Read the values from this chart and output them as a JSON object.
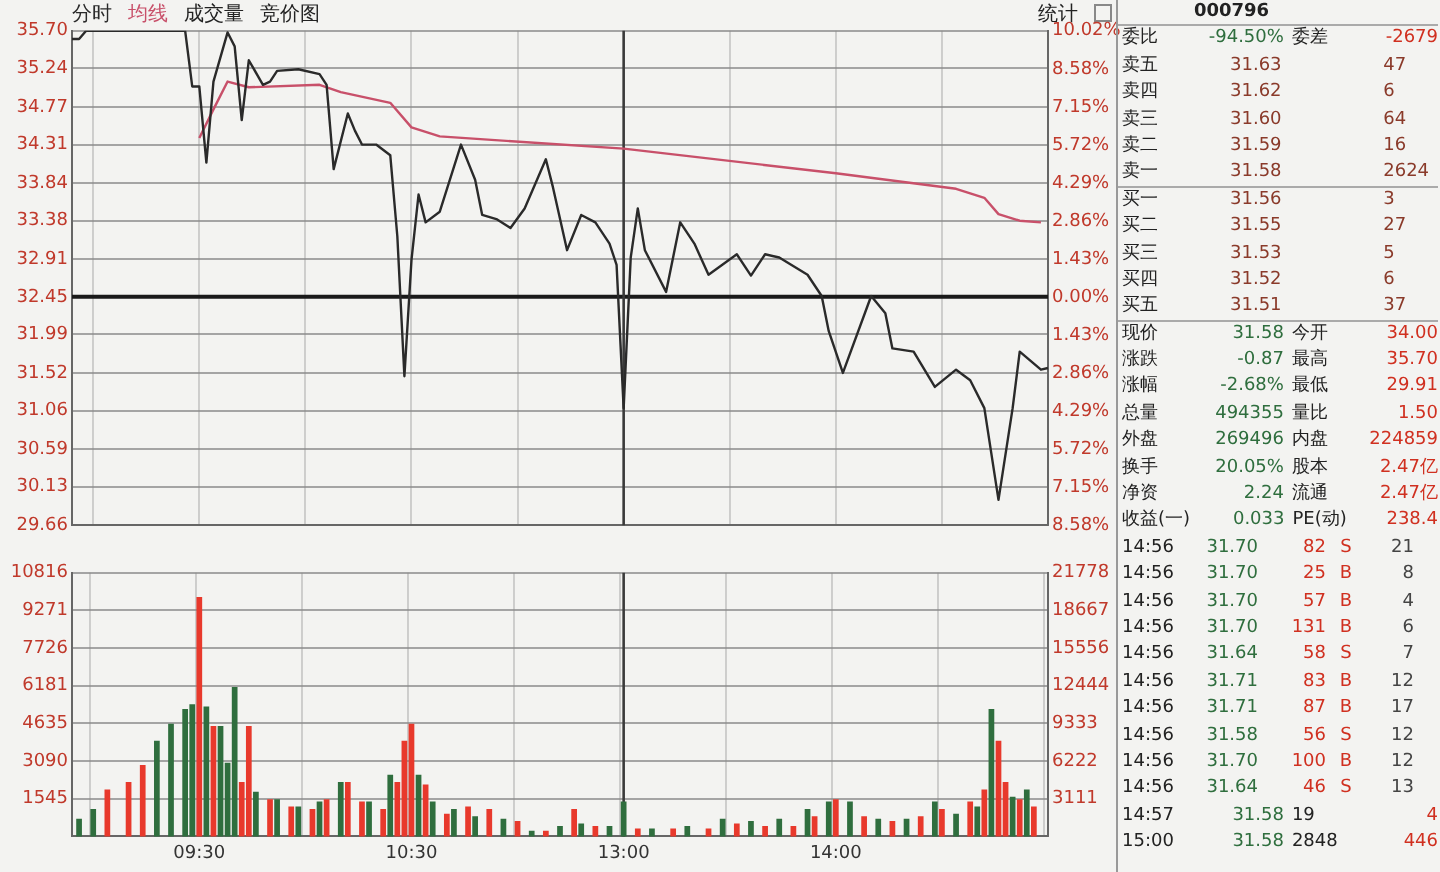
{
  "chart_data": [
    {
      "type": "line",
      "annotations": [
        "成交量",
        "竞价图",
        "统计"
      ],
      "categories": [
        null,
        null,
        null,
        null,
        null,
        null,
        null,
        null,
        null,
        null,
        null,
        null,
        null,
        null,
        null,
        null,
        null,
        null,
        "09:30",
        null,
        null,
        null,
        null,
        null,
        null,
        null,
        null,
        null,
        null,
        null,
        null,
        null,
        null,
        null,
        null,
        null,
        null,
        null,
        null,
        null,
        null,
        null,
        null,
        null,
        null,
        null,
        null,
        null,
        "10:30",
        null,
        null,
        null,
        null,
        null,
        null,
        null,
        null,
        null,
        null,
        null,
        null,
        null,
        null,
        null,
        null,
        null,
        null,
        null,
        null,
        null,
        null,
        null,
        null,
        null,
        null,
        null,
        null,
        null,
        "13:00",
        null,
        null,
        null,
        null,
        null,
        null,
        null,
        null,
        null,
        null,
        null,
        null,
        null,
        null,
        null,
        null,
        null,
        null,
        null,
        null,
        null,
        null,
        null,
        null,
        null,
        null,
        null,
        null,
        null,
        "14:00",
        null,
        null,
        null,
        null,
        null,
        null,
        null,
        null,
        null,
        null,
        null,
        null,
        null,
        null,
        null,
        null,
        null,
        null,
        null,
        null,
        null,
        null,
        null,
        null,
        null,
        null,
        null,
        null,
        null,
        null
      ],
      "series": [
        {
          "name": "分时",
          "color": "#2a2a2a",
          "values": [
            35.6,
            35.6,
            35.7,
            null,
            null,
            null,
            null,
            null,
            null,
            null,
            null,
            null,
            null,
            null,
            null,
            null,
            35.7,
            35.02,
            35.02,
            34.09,
            35.08,
            null,
            35.68,
            35.51,
            34.61,
            35.34,
            null,
            35.04,
            35.08,
            35.21,
            null,
            null,
            35.23,
            null,
            null,
            35.17,
            35.04,
            34.01,
            null,
            34.69,
            34.48,
            34.31,
            null,
            34.31,
            null,
            34.18,
            33.19,
            31.48,
            32.9,
            33.7,
            33.36,
            null,
            33.49,
            null,
            null,
            34.31,
            null,
            33.88,
            33.45,
            null,
            33.4,
            null,
            33.29,
            null,
            33.53,
            null,
            null,
            34.13,
            33.79,
            null,
            33.02,
            null,
            33.45,
            null,
            33.36,
            null,
            33.1,
            32.84,
            31.09,
            32.93,
            33.53,
            33.02,
            null,
            null,
            32.51,
            null,
            33.36,
            null,
            33.1,
            null,
            32.72,
            null,
            null,
            null,
            32.97,
            null,
            32.71,
            null,
            32.97,
            null,
            32.93,
            null,
            null,
            null,
            32.72,
            null,
            32.46,
            32.03,
            null,
            31.52,
            null,
            null,
            null,
            32.46,
            null,
            32.25,
            31.82,
            null,
            null,
            31.78,
            null,
            null,
            31.35,
            null,
            null,
            31.56,
            null,
            31.43,
            null,
            31.09,
            null,
            29.97,
            null,
            31.09,
            31.78,
            null,
            null,
            31.56,
            31.58
          ]
        },
        {
          "name": "均线",
          "color": "#c8506a",
          "values": [
            null,
            null,
            null,
            null,
            null,
            null,
            null,
            null,
            null,
            null,
            null,
            null,
            null,
            null,
            null,
            null,
            null,
            null,
            34.39,
            null,
            34.74,
            null,
            35.08,
            null,
            null,
            35.01,
            null,
            null,
            null,
            null,
            null,
            null,
            null,
            null,
            null,
            35.04,
            null,
            null,
            34.95,
            null,
            null,
            null,
            null,
            null,
            null,
            34.82,
            null,
            null,
            34.52,
            null,
            null,
            null,
            34.41,
            null,
            null,
            null,
            null,
            null,
            null,
            null,
            null,
            null,
            null,
            null,
            null,
            null,
            null,
            null,
            null,
            null,
            null,
            null,
            null,
            null,
            null,
            null,
            null,
            null,
            34.26,
            null,
            null,
            null,
            null,
            null,
            null,
            null,
            null,
            null,
            null,
            null,
            null,
            null,
            null,
            null,
            null,
            null,
            null,
            null,
            null,
            null,
            null,
            null,
            null,
            null,
            null,
            null,
            null,
            null,
            33.96,
            null,
            null,
            null,
            null,
            null,
            null,
            null,
            null,
            null,
            null,
            null,
            null,
            null,
            null,
            null,
            null,
            33.77,
            null,
            null,
            null,
            33.66,
            null,
            33.46,
            null,
            null,
            33.38,
            null,
            null,
            33.36,
            null
          ]
        }
      ],
      "ylim": [
        29.66,
        35.7
      ],
      "yticks": [
        {
          "value": 35.7,
          "label": "35.70"
        },
        35.24,
        34.77,
        34.31,
        33.84,
        33.38,
        32.91,
        32.45,
        31.99,
        31.52,
        31.06,
        30.59,
        30.13,
        29.66
      ],
      "y2lim": [
        -8.58,
        10.02
      ],
      "y2ticks": [
        {
          "value": 10.02,
          "label": "10.02%"
        },
        {
          "value": 8.58,
          "label": "8.58%"
        },
        {
          "value": 7.15,
          "label": "7.15%"
        },
        {
          "value": 5.72,
          "label": "5.72%"
        },
        {
          "value": 4.29,
          "label": "4.29%"
        },
        {
          "value": 2.86,
          "label": "2.86%"
        },
        {
          "value": 1.43,
          "label": "1.43%"
        },
        {
          "value": 0,
          "label": "0.00%"
        },
        {
          "value": -1.43,
          "label": "1.43%"
        },
        {
          "value": -2.86,
          "label": "2.86%"
        },
        {
          "value": -4.29,
          "label": "4.29%"
        },
        {
          "value": -5.72,
          "label": "5.72%"
        },
        {
          "value": -7.15,
          "label": "7.15%"
        },
        {
          "value": -8.58,
          "label": "8.58%"
        }
      ],
      "tick_labels": "y",
      "grid": true,
      "legend": false,
      "ref_lines": [
        {
          "axis": "y",
          "value": 32.45,
          "color": "#1a1a1a"
        },
        {
          "axis": "x",
          "value": "13:00",
          "color": "#3a3a3a"
        }
      ]
    },
    {
      "type": "bar",
      "categories": [
        null,
        null,
        null,
        null,
        null,
        null,
        null,
        null,
        null,
        null,
        null,
        null,
        null,
        null,
        null,
        null,
        null,
        null,
        "09:30",
        null,
        null,
        null,
        null,
        null,
        null,
        null,
        null,
        null,
        null,
        null,
        null,
        null,
        null,
        null,
        null,
        null,
        null,
        null,
        null,
        null,
        null,
        null,
        null,
        null,
        null,
        null,
        null,
        null,
        "10:30",
        null,
        null,
        null,
        null,
        null,
        null,
        null,
        null,
        null,
        null,
        null,
        null,
        null,
        null,
        null,
        null,
        null,
        null,
        null,
        null,
        null,
        null,
        null,
        null,
        null,
        null,
        null,
        null,
        null,
        "13:00",
        null,
        null,
        null,
        null,
        null,
        null,
        null,
        null,
        null,
        null,
        null,
        null,
        null,
        null,
        null,
        null,
        null,
        null,
        null,
        null,
        null,
        null,
        null,
        null,
        null,
        null,
        null,
        null,
        null,
        "14:00",
        null,
        null,
        null,
        null,
        null,
        null,
        null,
        null,
        null,
        null,
        null,
        null,
        null,
        null,
        null,
        null,
        null,
        null,
        null,
        null,
        null,
        null,
        null,
        null,
        null,
        null,
        null,
        null,
        null,
        null
      ],
      "series": [
        {
          "values": [
            null,
            700,
            null,
            1100,
            null,
            1900,
            null,
            null,
            2200,
            null,
            2900,
            null,
            3900,
            null,
            4600,
            null,
            5200,
            5400,
            9800,
            5300,
            4500,
            4500,
            3000,
            6100,
            2200,
            4500,
            1800,
            null,
            1500,
            1500,
            null,
            1200,
            1200,
            null,
            1100,
            1400,
            1500,
            null,
            2200,
            2200,
            null,
            1400,
            1400,
            null,
            1100,
            2500,
            2200,
            3900,
            4600,
            2500,
            2100,
            1400,
            null,
            900,
            1100,
            null,
            1200,
            800,
            null,
            1100,
            null,
            700,
            null,
            600,
            null,
            200,
            null,
            200,
            null,
            400,
            null,
            1100,
            500,
            null,
            400,
            null,
            400,
            null,
            1400,
            null,
            300,
            null,
            300,
            null,
            null,
            300,
            null,
            400,
            null,
            null,
            300,
            null,
            700,
            null,
            500,
            null,
            600,
            null,
            400,
            null,
            700,
            null,
            400,
            null,
            1100,
            800,
            null,
            1400,
            1500,
            null,
            1400,
            null,
            800,
            null,
            700,
            null,
            600,
            null,
            700,
            null,
            800,
            null,
            1400,
            1100,
            null,
            900,
            null,
            1400,
            1200,
            1900,
            5200,
            3900,
            2200,
            1600,
            1500,
            1900,
            1200,
            null,
            null
          ],
          "colors": [
            null,
            "#2f6e3e",
            null,
            "#2f6e3e",
            null,
            "#e8392c",
            null,
            null,
            "#e8392c",
            null,
            "#e8392c",
            null,
            "#2f6e3e",
            null,
            "#2f6e3e",
            null,
            "#2f6e3e",
            "#2f6e3e",
            "#e8392c",
            "#2f6e3e",
            "#e8392c",
            "#2f6e3e",
            "#2f6e3e",
            "#2f6e3e",
            "#e8392c",
            "#e8392c",
            "#2f6e3e",
            null,
            "#e8392c",
            "#2f6e3e",
            null,
            "#e8392c",
            "#2f6e3e",
            null,
            "#e8392c",
            "#2f6e3e",
            "#e8392c",
            null,
            "#2f6e3e",
            "#e8392c",
            null,
            "#e8392c",
            "#2f6e3e",
            null,
            "#e8392c",
            "#2f6e3e",
            "#e8392c",
            "#e8392c",
            "#e8392c",
            "#2f6e3e",
            "#e8392c",
            "#2f6e3e",
            null,
            "#e8392c",
            "#2f6e3e",
            null,
            "#e8392c",
            "#2f6e3e",
            null,
            "#e8392c",
            null,
            "#2f6e3e",
            null,
            "#e8392c",
            null,
            "#2f6e3e",
            null,
            "#e8392c",
            null,
            "#2f6e3e",
            null,
            "#e8392c",
            "#2f6e3e",
            null,
            "#e8392c",
            null,
            "#2f6e3e",
            null,
            "#2f6e3e",
            null,
            "#e8392c",
            null,
            "#2f6e3e",
            null,
            null,
            "#e8392c",
            null,
            "#2f6e3e",
            null,
            null,
            "#e8392c",
            null,
            "#2f6e3e",
            null,
            "#e8392c",
            null,
            "#2f6e3e",
            null,
            "#e8392c",
            null,
            "#2f6e3e",
            null,
            "#e8392c",
            null,
            "#2f6e3e",
            "#e8392c",
            null,
            "#2f6e3e",
            "#e8392c",
            null,
            "#2f6e3e",
            null,
            "#e8392c",
            null,
            "#2f6e3e",
            null,
            "#e8392c",
            null,
            "#2f6e3e",
            null,
            "#e8392c",
            null,
            "#2f6e3e",
            "#e8392c",
            null,
            "#2f6e3e",
            null,
            "#e8392c",
            "#2f6e3e",
            "#e8392c",
            "#2f6e3e",
            "#e8392c",
            "#e8392c",
            "#2f6e3e",
            "#e8392c",
            "#2f6e3e",
            "#e8392c",
            null,
            null
          ]
        }
      ],
      "ylim": [
        0,
        10816
      ],
      "yticks": [
        1545,
        3090,
        4635,
        6181,
        7726,
        9271,
        10816
      ],
      "y2lim": [
        0,
        21778
      ],
      "y2ticks": [
        3111,
        6222,
        9333,
        12444,
        15556,
        18667,
        21778
      ],
      "grid": true,
      "legend": false,
      "ref_lines": [
        {
          "axis": "x",
          "value": "13:00",
          "color": "#3a3a3a"
        }
      ]
    },
    {
      "type": "other",
      "annotations": [
        "000796",
        "委比 -94.50% 委差 -2679",
        "卖五 31.63 47",
        "卖四 31.62 6",
        "卖三 31.60 64",
        "卖二 31.59 16",
        "卖一 31.58 2624",
        "买一 31.56 3",
        "买二 31.55 27",
        "买三 31.53 5",
        "买四 31.52 6",
        "买五 31.51 37",
        "现价 31.58 今开 34.00",
        "涨跌 -0.87 最高 35.70",
        "涨幅 -2.68% 最低 29.91",
        "总量 494355 量比 1.50",
        "外盘 269496 内盘 224859",
        "换手 20.05% 股本 2.47亿",
        "净资 2.24 流通 2.47亿",
        "收益(一) 0.033 PE(动) 238.4",
        "14:56 31.70 82 S 21",
        "14:56 31.70 25 B 8",
        "14:56 31.70 57 B 4",
        "14:56 31.70 131 B 6",
        "14:56 31.64 58 S 7",
        "14:56 31.71 83 B 12",
        "14:56 31.71 87 B 17",
        "14:56 31.58 56 S 12",
        "14:56 31.70 100 B 12",
        "14:56 31.64 46 S 13",
        "14:57 31.58 19 4",
        "15:00 31.58 2848 446"
      ]
    }
  ]
}
